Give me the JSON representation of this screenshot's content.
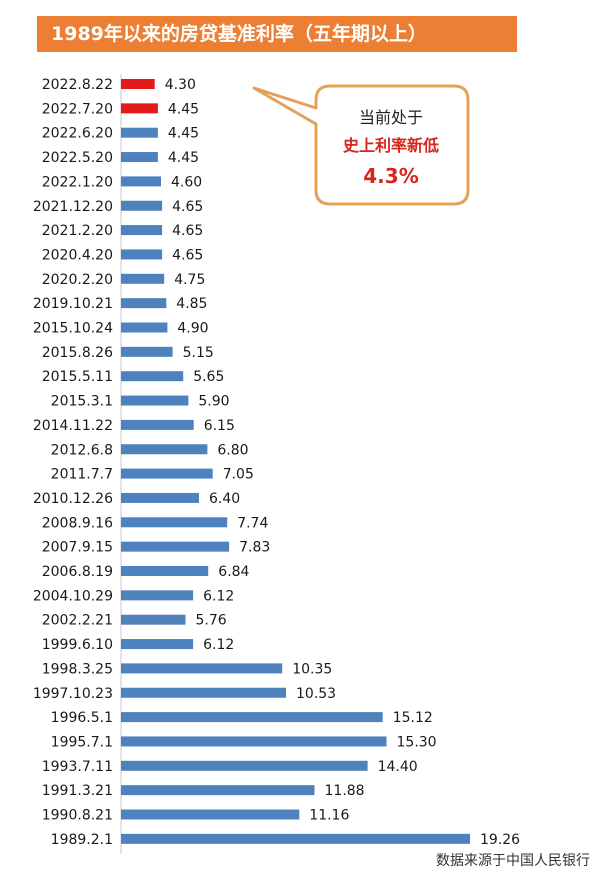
{
  "title": "1989年以来的房贷基准利率（五年期以上）",
  "source": "数据来源于中国人民银行",
  "callout": {
    "line1": "当前处于",
    "line2": "史上利率新低",
    "line3": "4.3%"
  },
  "colors": {
    "title_bg": "#ec7f33",
    "bar_default": "#4f81bd",
    "bar_highlight": "#e3191c",
    "callout_border": "#e3a15a",
    "callout_text": "#d7261e"
  },
  "chart_data": {
    "type": "bar",
    "orientation": "horizontal",
    "categories": [
      "2022.8.22",
      "2022.7.20",
      "2022.6.20",
      "2022.5.20",
      "2022.1.20",
      "2021.12.20",
      "2021.2.20",
      "2020.4.20",
      "2020.2.20",
      "2019.10.21",
      "2015.10.24",
      "2015.8.26",
      "2015.5.11",
      "2015.3.1",
      "2014.11.22",
      "2012.6.8",
      "2011.7.7",
      "2010.12.26",
      "2008.9.16",
      "2007.9.15",
      "2006.8.19",
      "2004.10.29",
      "2002.2.21",
      "1999.6.10",
      "1998.3.25",
      "1997.10.23",
      "1996.5.1",
      "1995.7.1",
      "1993.7.11",
      "1991.3.21",
      "1990.8.21",
      "1989.2.1"
    ],
    "values": [
      4.3,
      4.45,
      4.45,
      4.45,
      4.6,
      4.65,
      4.65,
      4.65,
      4.75,
      4.85,
      4.9,
      5.15,
      5.65,
      5.9,
      6.15,
      6.8,
      7.05,
      6.4,
      7.74,
      7.83,
      6.84,
      6.12,
      5.76,
      6.12,
      10.35,
      10.53,
      15.12,
      15.3,
      14.4,
      11.88,
      11.16,
      19.26
    ],
    "value_labels": [
      "4.30",
      "4.45",
      "4.45",
      "4.45",
      "4.60",
      "4.65",
      "4.65",
      "4.65",
      "4.75",
      "4.85",
      "4.90",
      "5.15",
      "5.65",
      "5.90",
      "6.15",
      "6.80",
      "7.05",
      "6.40",
      "7.74",
      "7.83",
      "6.84",
      "6.12",
      "5.76",
      "6.12",
      "10.35",
      "10.53",
      "15.12",
      "15.30",
      "14.40",
      "11.88",
      "11.16",
      "19.26"
    ],
    "highlighted": [
      0,
      1
    ],
    "title": "1989年以来的房贷基准利率（五年期以上）",
    "xlabel": "",
    "ylabel": "",
    "grid": false
  }
}
